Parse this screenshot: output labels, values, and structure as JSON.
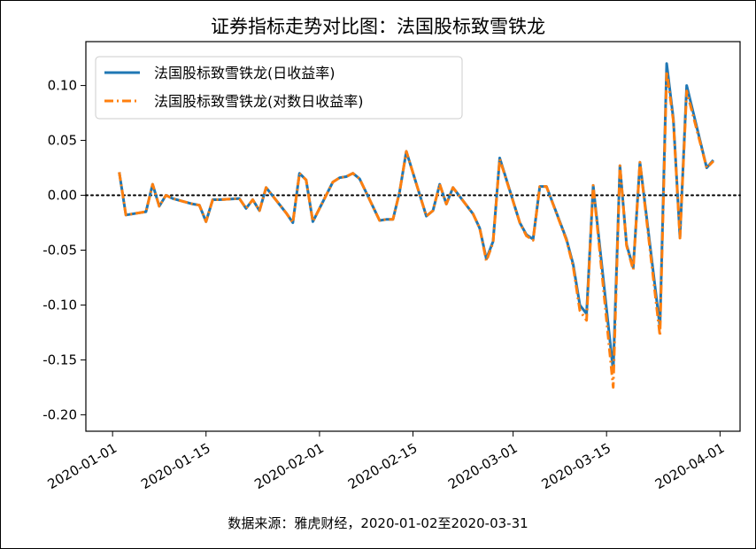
{
  "chart_data": {
    "type": "line",
    "title": "证券指标走势对比图：法国股标致雪铁龙",
    "source_note": "数据来源：雅虎财经，2020-01-02至2020-03-31",
    "xlabel": "",
    "ylabel": "",
    "x_range": [
      "2019-12-28",
      "2020-04-04"
    ],
    "ylim": [
      -0.215,
      0.14
    ],
    "x_ticks": [
      "2020-01-01",
      "2020-01-15",
      "2020-02-01",
      "2020-02-15",
      "2020-03-01",
      "2020-03-15",
      "2020-04-01"
    ],
    "y_ticks": [
      0.1,
      0.05,
      0.0,
      -0.05,
      -0.1,
      -0.15,
      -0.2
    ],
    "y_tick_labels": [
      "0.10",
      "0.05",
      "0.00",
      "-0.05",
      "-0.10",
      "-0.15",
      "-0.20"
    ],
    "reference_line": {
      "y": 0.0,
      "style": "dotted",
      "color": "#000000"
    },
    "legend_position": "upper-left",
    "grid": false,
    "series": [
      {
        "name": "法国股标致雪铁龙(日收益率)",
        "color": "#1f77b4",
        "style": "solid",
        "x": [
          "2020-01-02",
          "2020-01-03",
          "2020-01-06",
          "2020-01-07",
          "2020-01-08",
          "2020-01-09",
          "2020-01-10",
          "2020-01-13",
          "2020-01-14",
          "2020-01-15",
          "2020-01-16",
          "2020-01-17",
          "2020-01-20",
          "2020-01-21",
          "2020-01-22",
          "2020-01-23",
          "2020-01-24",
          "2020-01-27",
          "2020-01-28",
          "2020-01-29",
          "2020-01-30",
          "2020-01-31",
          "2020-02-03",
          "2020-02-04",
          "2020-02-05",
          "2020-02-06",
          "2020-02-07",
          "2020-02-10",
          "2020-02-11",
          "2020-02-12",
          "2020-02-13",
          "2020-02-14",
          "2020-02-17",
          "2020-02-18",
          "2020-02-19",
          "2020-02-20",
          "2020-02-21",
          "2020-02-24",
          "2020-02-25",
          "2020-02-26",
          "2020-02-27",
          "2020-02-28",
          "2020-03-02",
          "2020-03-03",
          "2020-03-04",
          "2020-03-05",
          "2020-03-06",
          "2020-03-09",
          "2020-03-10",
          "2020-03-11",
          "2020-03-12",
          "2020-03-13",
          "2020-03-16",
          "2020-03-17",
          "2020-03-18",
          "2020-03-19",
          "2020-03-20",
          "2020-03-23",
          "2020-03-24",
          "2020-03-25",
          "2020-03-26",
          "2020-03-27",
          "2020-03-30",
          "2020-03-31"
        ],
        "values": [
          0.021,
          -0.018,
          -0.015,
          0.01,
          -0.01,
          0.0,
          -0.003,
          -0.008,
          -0.009,
          -0.024,
          -0.004,
          -0.004,
          -0.003,
          -0.012,
          -0.004,
          -0.014,
          0.007,
          -0.016,
          -0.025,
          0.02,
          0.014,
          -0.024,
          0.012,
          0.016,
          0.017,
          0.02,
          0.015,
          -0.023,
          -0.022,
          -0.022,
          0.003,
          0.04,
          -0.019,
          -0.014,
          0.01,
          -0.008,
          0.007,
          -0.017,
          -0.03,
          -0.058,
          -0.042,
          0.034,
          -0.025,
          -0.036,
          -0.04,
          0.008,
          0.008,
          -0.04,
          -0.063,
          -0.1,
          -0.108,
          0.009,
          -0.16,
          0.027,
          -0.045,
          -0.066,
          0.03,
          -0.12,
          0.12,
          0.07,
          -0.038,
          0.1,
          0.025,
          0.032
        ]
      },
      {
        "name": "法国股标致雪铁龙(对数日收益率)",
        "color": "#ff7f0e",
        "style": "dashdot",
        "x": [
          "2020-01-02",
          "2020-01-03",
          "2020-01-06",
          "2020-01-07",
          "2020-01-08",
          "2020-01-09",
          "2020-01-10",
          "2020-01-13",
          "2020-01-14",
          "2020-01-15",
          "2020-01-16",
          "2020-01-17",
          "2020-01-20",
          "2020-01-21",
          "2020-01-22",
          "2020-01-23",
          "2020-01-24",
          "2020-01-27",
          "2020-01-28",
          "2020-01-29",
          "2020-01-30",
          "2020-01-31",
          "2020-02-03",
          "2020-02-04",
          "2020-02-05",
          "2020-02-06",
          "2020-02-07",
          "2020-02-10",
          "2020-02-11",
          "2020-02-12",
          "2020-02-13",
          "2020-02-14",
          "2020-02-17",
          "2020-02-18",
          "2020-02-19",
          "2020-02-20",
          "2020-02-21",
          "2020-02-24",
          "2020-02-25",
          "2020-02-26",
          "2020-02-27",
          "2020-02-28",
          "2020-03-02",
          "2020-03-03",
          "2020-03-04",
          "2020-03-05",
          "2020-03-06",
          "2020-03-09",
          "2020-03-10",
          "2020-03-11",
          "2020-03-12",
          "2020-03-13",
          "2020-03-16",
          "2020-03-17",
          "2020-03-18",
          "2020-03-19",
          "2020-03-20",
          "2020-03-23",
          "2020-03-24",
          "2020-03-25",
          "2020-03-26",
          "2020-03-27",
          "2020-03-30",
          "2020-03-31"
        ],
        "values": [
          0.021,
          -0.018,
          -0.015,
          0.01,
          -0.01,
          0.0,
          -0.003,
          -0.008,
          -0.009,
          -0.024,
          -0.004,
          -0.004,
          -0.003,
          -0.012,
          -0.004,
          -0.014,
          0.007,
          -0.016,
          -0.025,
          0.02,
          0.014,
          -0.024,
          0.012,
          0.016,
          0.017,
          0.02,
          0.015,
          -0.023,
          -0.022,
          -0.022,
          0.003,
          0.04,
          -0.019,
          -0.014,
          0.01,
          -0.008,
          0.007,
          -0.017,
          -0.03,
          -0.06,
          -0.043,
          0.033,
          -0.025,
          -0.037,
          -0.041,
          0.008,
          0.008,
          -0.041,
          -0.065,
          -0.105,
          -0.114,
          0.009,
          -0.175,
          0.027,
          -0.046,
          -0.068,
          0.03,
          -0.128,
          0.113,
          0.068,
          -0.039,
          0.095,
          0.025,
          0.031
        ]
      }
    ]
  }
}
